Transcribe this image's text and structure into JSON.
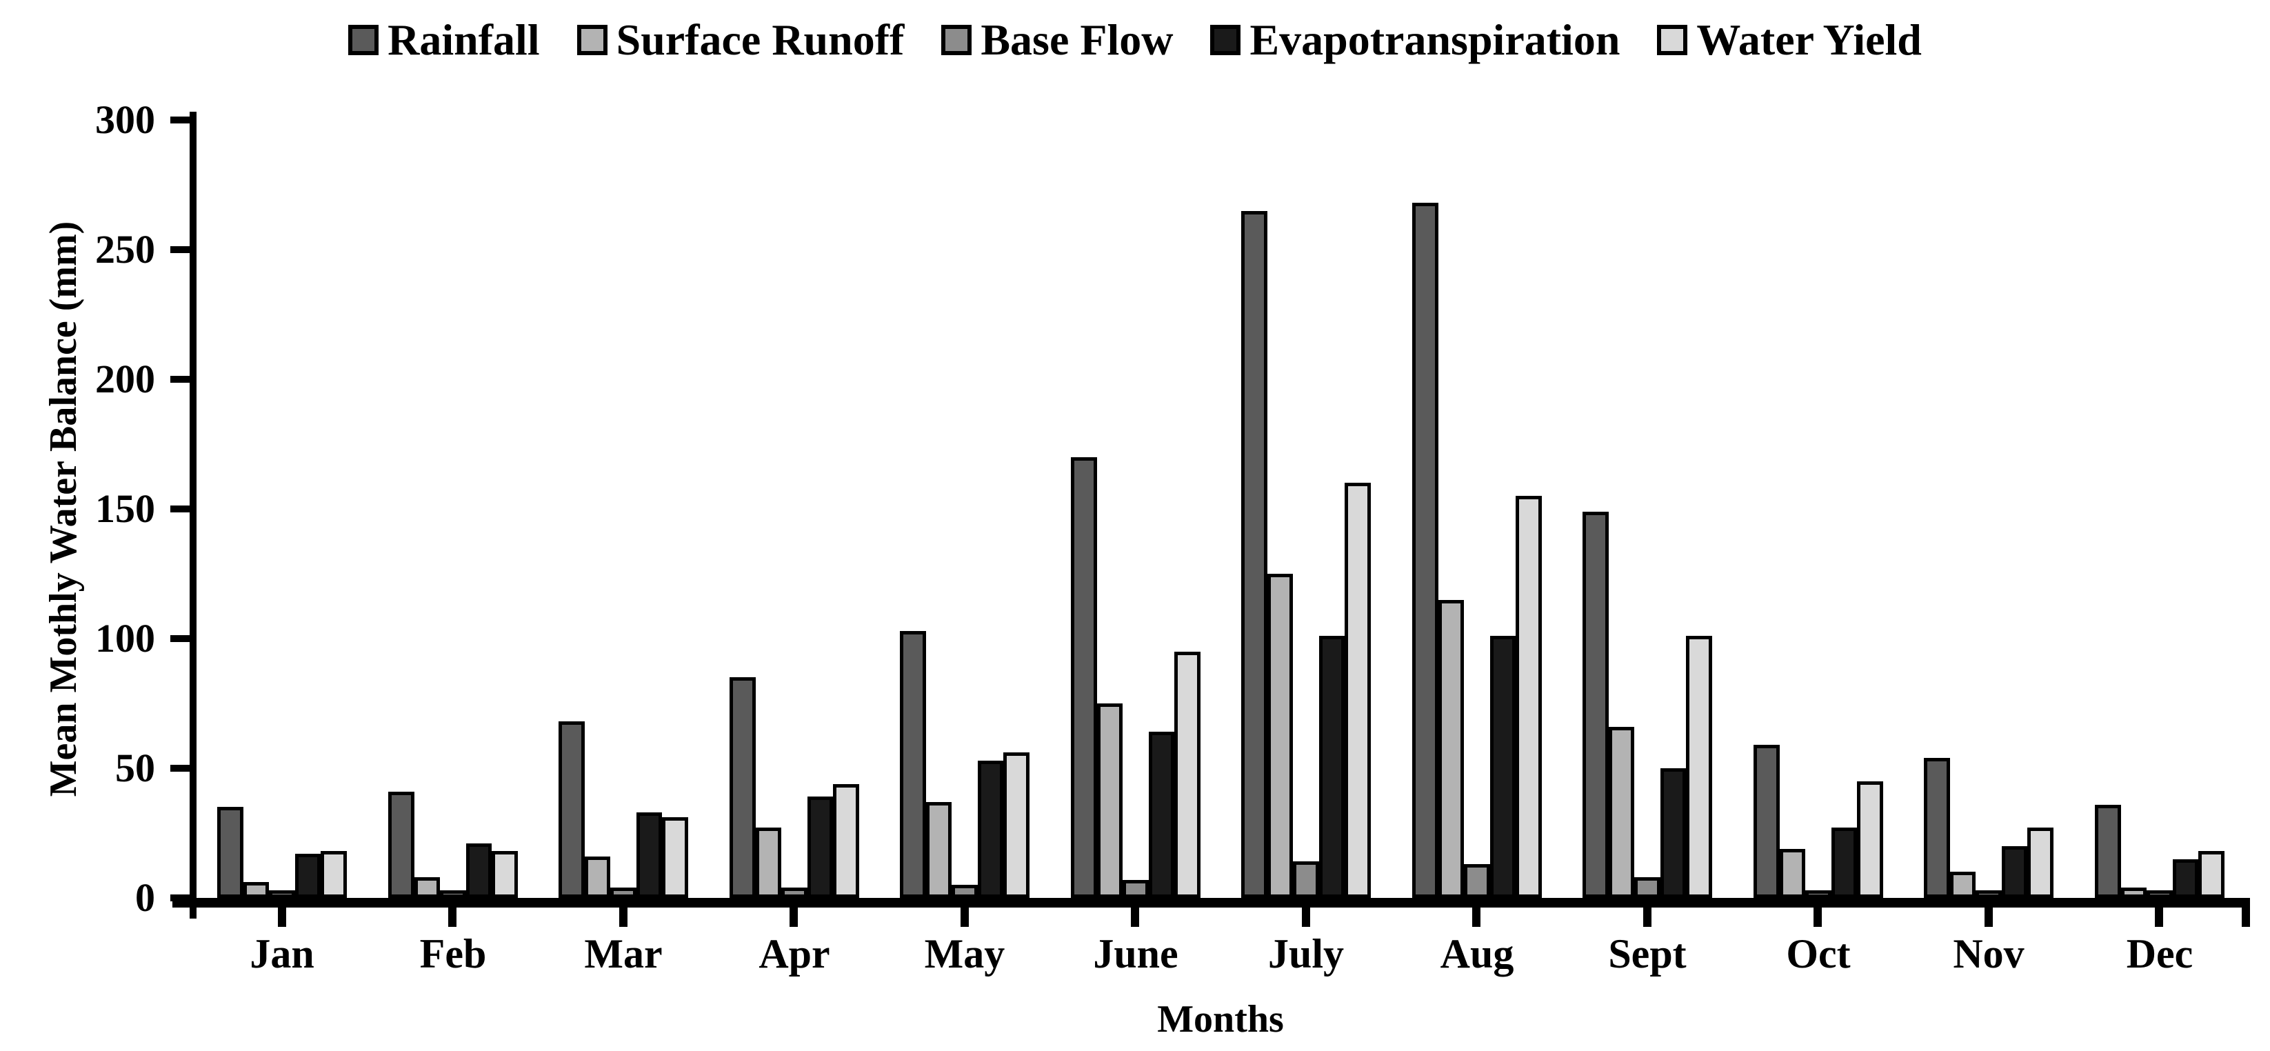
{
  "chart_data": {
    "type": "bar",
    "title": "",
    "xlabel": "Months",
    "ylabel": "Mean Mothly Water Balance (mm)",
    "ylim": [
      0,
      300
    ],
    "yticks": [
      0,
      50,
      100,
      150,
      200,
      250,
      300
    ],
    "grid": false,
    "legend_position": "top",
    "background_color": "#ffffff",
    "axis_color": "#000000",
    "bar_outline_color": "#000000",
    "categories": [
      "Jan",
      "Feb",
      "Mar",
      "Apr",
      "May",
      "June",
      "July",
      "Aug",
      "Sept",
      "Oct",
      "Nov",
      "Dec"
    ],
    "series": [
      {
        "name": "Rainfall",
        "color": "#5a5a5a",
        "values": [
          35,
          41,
          68,
          85,
          103,
          170,
          265,
          268,
          149,
          59,
          54,
          36
        ]
      },
      {
        "name": "Surface Runoff",
        "color": "#b3b3b3",
        "values": [
          6,
          8,
          16,
          27,
          37,
          75,
          125,
          115,
          66,
          19,
          10,
          4
        ]
      },
      {
        "name": "Base Flow",
        "color": "#8c8c8c",
        "values": [
          2,
          2,
          4,
          4,
          5,
          7,
          14,
          13,
          8,
          2,
          2,
          1
        ]
      },
      {
        "name": "Evapotranspiration",
        "color": "#1a1a1a",
        "values": [
          17,
          21,
          33,
          39,
          53,
          64,
          101,
          101,
          50,
          27,
          20,
          15
        ]
      },
      {
        "name": "Water Yield",
        "color": "#d9d9d9",
        "values": [
          18,
          18,
          31,
          44,
          56,
          95,
          160,
          155,
          101,
          45,
          27,
          18
        ]
      }
    ]
  }
}
